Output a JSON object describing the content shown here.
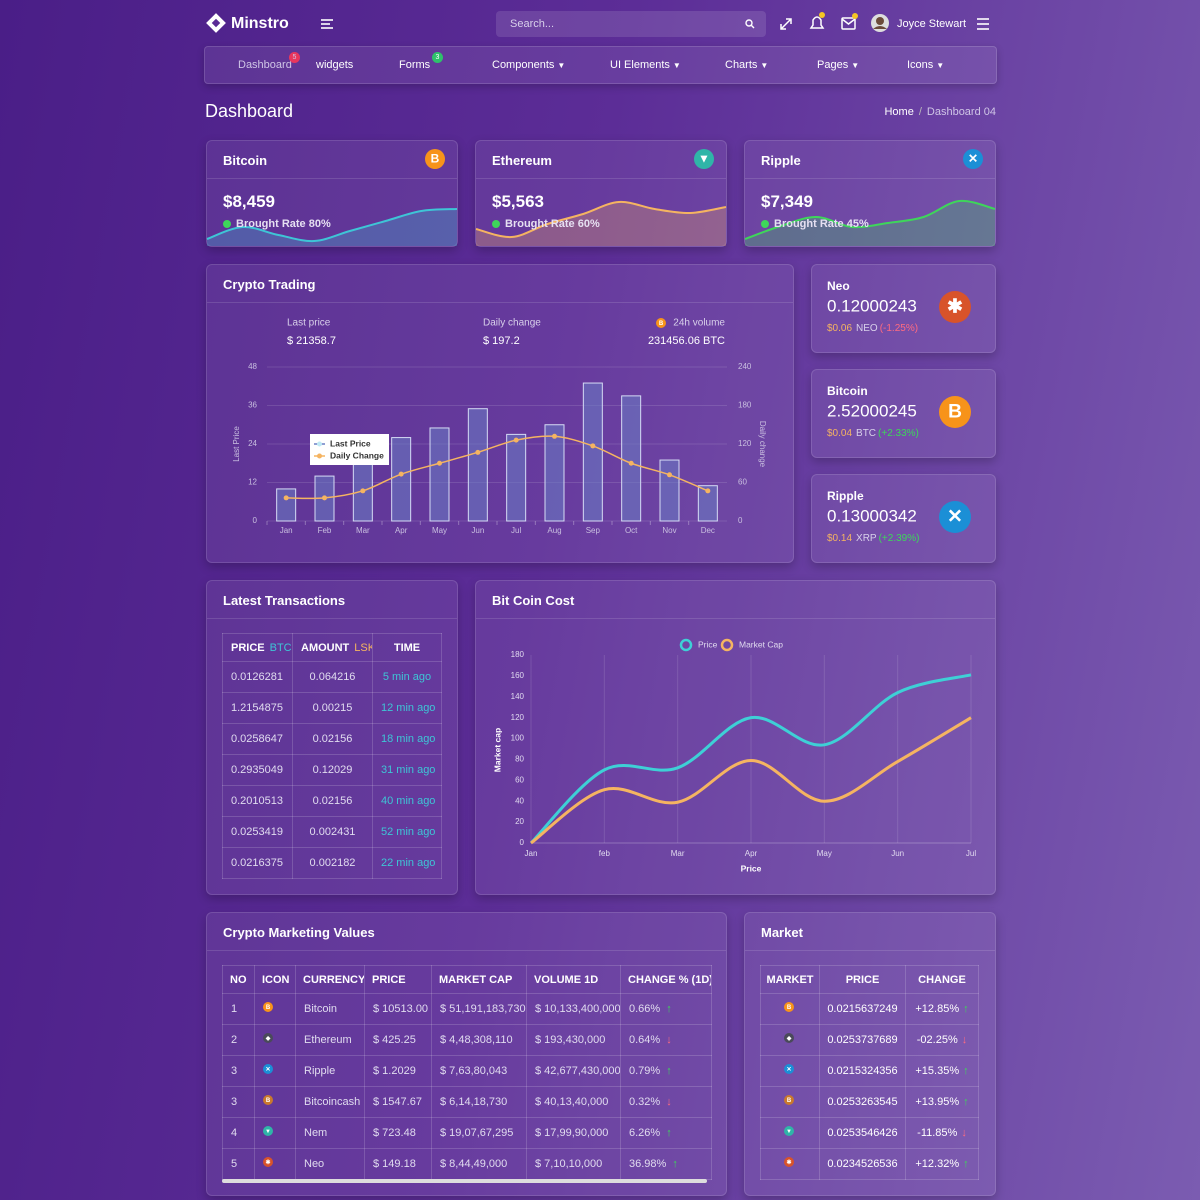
{
  "header": {
    "brand": "Minstro",
    "search_placeholder": "Search...",
    "user_name": "Joyce Stewart"
  },
  "nav": [
    {
      "label": "Dashboard",
      "badge": 5,
      "badge_color": "#e8365d"
    },
    {
      "label": "widgets"
    },
    {
      "label": "Forms",
      "badge": 3,
      "badge_color": "#2ec16b"
    },
    {
      "label": "Components",
      "dropdown": true
    },
    {
      "label": "UI Elements",
      "dropdown": true
    },
    {
      "label": "Charts",
      "dropdown": true
    },
    {
      "label": "Pages",
      "dropdown": true
    },
    {
      "label": "Icons",
      "dropdown": true
    }
  ],
  "page_title": "Dashboard",
  "breadcrumb": [
    "Home",
    "Dashboard 04"
  ],
  "coin_cards": [
    {
      "name": "Bitcoin",
      "icon": "btc",
      "price": "$8,459",
      "rate": "Brought Rate 80%",
      "color": "#3ec5d6",
      "spark": [
        1.4,
        3.8,
        2.2,
        1,
        3,
        5,
        7,
        7.4
      ]
    },
    {
      "name": "Ethereum",
      "icon": "nem",
      "price": "$5,563",
      "rate": "Brought Rate 60%",
      "color": "#f5b461",
      "spark": [
        3.4,
        1.8,
        4.4,
        6.4,
        8.8,
        7.4,
        6.6,
        7.8
      ]
    },
    {
      "name": "Ripple",
      "icon": "xrp",
      "price": "$7,349",
      "rate": "Brought Rate 45%",
      "color": "#3ed65a",
      "spark": [
        1.4,
        4,
        5.8,
        3.8,
        4.6,
        5.8,
        9,
        7.4
      ]
    }
  ],
  "spark_ylim": [
    0,
    10
  ],
  "crypto_trading": {
    "title": "Crypto Trading",
    "stats": [
      {
        "label": "Last price",
        "value": "$ 21358.7"
      },
      {
        "label": "Daily change",
        "value": "$ 197.2"
      },
      {
        "label": "24h volume",
        "value": "231456.06 BTC"
      }
    ],
    "chart": {
      "type": "bar",
      "categories": [
        "Jan",
        "Feb",
        "Mar",
        "Apr",
        "May",
        "Jun",
        "Jul",
        "Aug",
        "Sep",
        "Oct",
        "Nov",
        "Dec"
      ],
      "series": [
        {
          "name": "Last Price",
          "color": "#6a7ec4",
          "values": [
            10,
            14,
            19,
            26,
            29,
            35,
            27,
            30,
            43,
            39,
            19,
            11
          ]
        },
        {
          "name": "Daily Change",
          "color": "#f5b461",
          "axis": "y2",
          "type": "line",
          "values": [
            36,
            36,
            47,
            73,
            90,
            107,
            126,
            132,
            117,
            90,
            72,
            47
          ]
        }
      ],
      "y_label": "Last Price",
      "y2_label": "Daily change",
      "ylim": [
        0,
        48
      ],
      "yticks": [
        0,
        12,
        24,
        36,
        48
      ],
      "y2lim": [
        0,
        240
      ],
      "y2ticks": [
        0,
        60,
        120,
        180,
        240
      ],
      "grid": true
    }
  },
  "side_cards": [
    {
      "name": "Neo",
      "icon": "neo",
      "value": "0.12000243",
      "usd": "$0.06",
      "symbol": "NEO",
      "change": "(-1.25%)",
      "trend": "down"
    },
    {
      "name": "Bitcoin",
      "icon": "btc",
      "value": "2.52000245",
      "usd": "$0.04",
      "symbol": "BTC",
      "change": "(+2.33%)",
      "trend": "up"
    },
    {
      "name": "Ripple",
      "icon": "xrp",
      "value": "0.13000342",
      "usd": "$0.14",
      "symbol": "XRP",
      "change": "(+2.39%)",
      "trend": "up"
    }
  ],
  "latest_transactions": {
    "title": "Latest Transactions",
    "headers": [
      {
        "label": "PRICE",
        "unit": "BTC"
      },
      {
        "label": "AMOUNT",
        "unit": "LSK"
      },
      {
        "label": "TIME"
      }
    ],
    "rows": [
      {
        "price": "0.0126281",
        "amount": "0.064216",
        "time": "5 min ago"
      },
      {
        "price": "1.2154875",
        "amount": "0.00215",
        "time": "12 min ago"
      },
      {
        "price": "0.0258647",
        "amount": "0.02156",
        "time": "18 min ago"
      },
      {
        "price": "0.2935049",
        "amount": "0.12029",
        "time": "31 min ago"
      },
      {
        "price": "0.2010513",
        "amount": "0.02156",
        "time": "40 min ago"
      },
      {
        "price": "0.0253419",
        "amount": "0.002431",
        "time": "52 min ago"
      },
      {
        "price": "0.0216375",
        "amount": "0.002182",
        "time": "22 min ago"
      }
    ]
  },
  "bitcoin_cost": {
    "title": "Bit Coin Cost",
    "chart": {
      "type": "line",
      "categories": [
        "Jan",
        "feb",
        "Mar",
        "Apr",
        "May",
        "Jun",
        "Jul"
      ],
      "series": [
        {
          "name": "Price",
          "color": "#3ed0d6",
          "values": [
            0,
            70,
            72,
            120,
            94,
            144,
            161
          ]
        },
        {
          "name": "Market Cap",
          "color": "#f5b461",
          "values": [
            0,
            51,
            39,
            79,
            40,
            78,
            120
          ]
        }
      ],
      "x_label": "Price",
      "y_label": "Market cap",
      "ylim": [
        0,
        180
      ],
      "yticks": [
        0,
        20,
        40,
        60,
        80,
        100,
        120,
        140,
        160,
        180
      ],
      "grid": true
    }
  },
  "crypto_marketing": {
    "title": "Crypto Marketing Values",
    "headers": [
      "NO",
      "ICON",
      "CURRENCY",
      "PRICE",
      "MARKET CAP",
      "VOLUME 1D",
      "CHANGE % (1D)"
    ],
    "rows": [
      {
        "no": 1,
        "icon": "btc",
        "currency": "Bitcoin",
        "price": "$ 10513.00",
        "market_cap": "$ 51,191,183,730",
        "volume": "$ 10,133,400,000",
        "change": "0.66%",
        "trend": "up"
      },
      {
        "no": 2,
        "icon": "eth",
        "currency": "Ethereum",
        "price": "$ 425.25",
        "market_cap": "$ 4,48,308,110",
        "volume": "$ 193,430,000",
        "change": "0.64%",
        "trend": "down"
      },
      {
        "no": 3,
        "icon": "xrp",
        "currency": "Ripple",
        "price": "$ 1.2029",
        "market_cap": "$ 7,63,80,043",
        "volume": "$ 42,677,430,000",
        "change": "0.79%",
        "trend": "up"
      },
      {
        "no": 3,
        "icon": "bch",
        "currency": "Bitcoincash",
        "price": "$ 1547.67",
        "market_cap": "$ 6,14,18,730",
        "volume": "$ 40,13,40,000",
        "change": "0.32%",
        "trend": "down"
      },
      {
        "no": 4,
        "icon": "nem",
        "currency": "Nem",
        "price": "$ 723.48",
        "market_cap": "$ 19,07,67,295",
        "volume": "$ 17,99,90,000",
        "change": "6.26%",
        "trend": "up"
      },
      {
        "no": 5,
        "icon": "neo",
        "currency": "Neo",
        "price": "$ 149.18",
        "market_cap": "$ 8,44,49,000",
        "volume": "$ 7,10,10,000",
        "change": "36.98%",
        "trend": "up"
      }
    ]
  },
  "market": {
    "title": "Market",
    "headers": [
      "MARKET",
      "PRICE",
      "CHANGE"
    ],
    "rows": [
      {
        "icon": "btc",
        "price": "0.0215637249",
        "change": "+12.85%",
        "trend": "up"
      },
      {
        "icon": "eth",
        "price": "0.0253737689",
        "change": "-02.25%",
        "trend": "down"
      },
      {
        "icon": "xrp",
        "price": "0.0215324356",
        "change": "+15.35%",
        "trend": "up"
      },
      {
        "icon": "bch",
        "price": "0.0253263545",
        "change": "+13.95%",
        "trend": "up"
      },
      {
        "icon": "nem",
        "price": "0.0253546426",
        "change": "-11.85%",
        "trend": "down"
      },
      {
        "icon": "neo",
        "price": "0.0234526536",
        "change": "+12.32%",
        "trend": "up"
      }
    ]
  }
}
